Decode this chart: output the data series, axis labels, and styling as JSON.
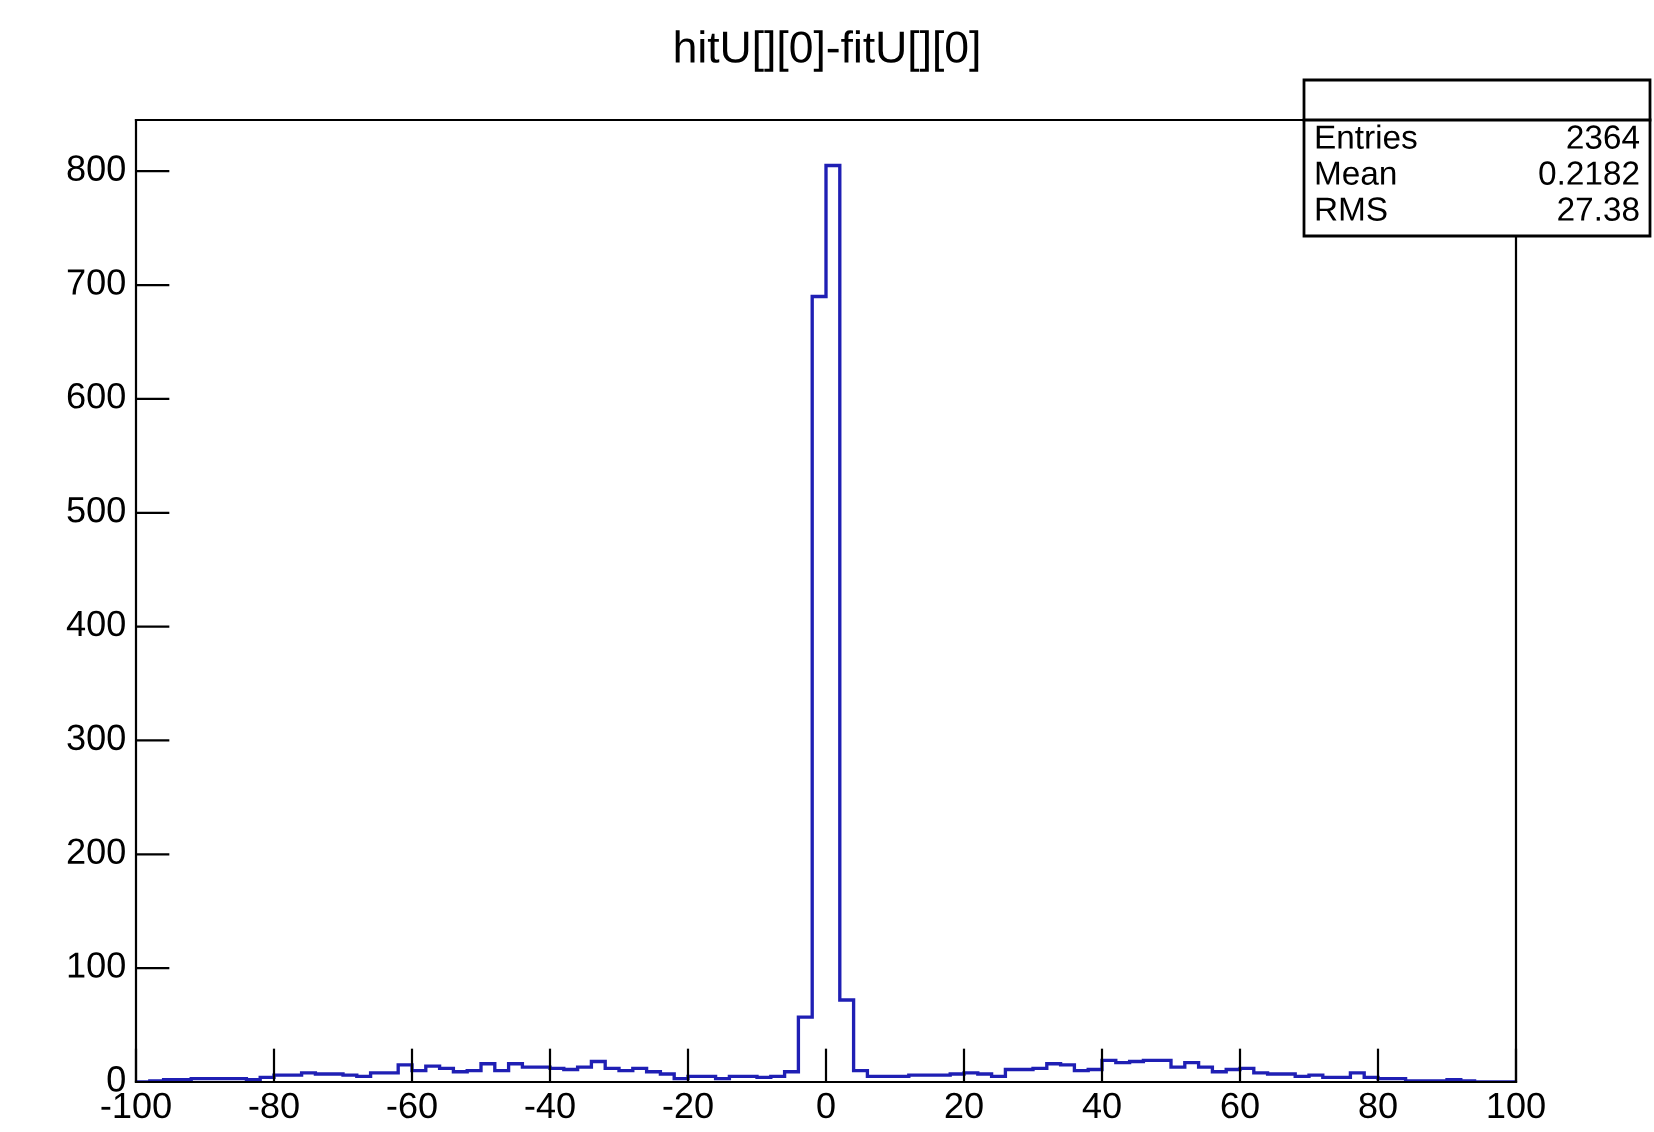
{
  "chart_data": {
    "type": "histogram",
    "title": "hitU[][0]-fitU[][0]",
    "bins": [
      -100,
      -98,
      -96,
      -94,
      -92,
      -90,
      -88,
      -86,
      -84,
      -82,
      -80,
      -78,
      -76,
      -74,
      -72,
      -70,
      -68,
      -66,
      -64,
      -62,
      -60,
      -58,
      -56,
      -54,
      -52,
      -50,
      -48,
      -46,
      -44,
      -42,
      -40,
      -38,
      -36,
      -34,
      -32,
      -30,
      -28,
      -26,
      -24,
      -22,
      -20,
      -18,
      -16,
      -14,
      -12,
      -10,
      -8,
      -6,
      -4,
      -2,
      0,
      2,
      4,
      6,
      8,
      10,
      12,
      14,
      16,
      18,
      20,
      22,
      24,
      26,
      28,
      30,
      32,
      34,
      36,
      38,
      40,
      42,
      44,
      46,
      48,
      50,
      52,
      54,
      56,
      58,
      60,
      62,
      64,
      66,
      68,
      70,
      72,
      74,
      76,
      78,
      80,
      82,
      84,
      86,
      88,
      90,
      92,
      94,
      96,
      98,
      100
    ],
    "values": [
      0,
      1,
      2,
      2,
      3,
      3,
      3,
      3,
      2,
      4,
      6,
      6,
      8,
      7,
      7,
      6,
      5,
      8,
      8,
      15,
      10,
      14,
      12,
      9,
      10,
      16,
      10,
      16,
      13,
      13,
      12,
      11,
      13,
      18,
      12,
      10,
      12,
      9,
      7,
      3,
      5,
      5,
      3,
      5,
      5,
      4,
      5,
      9,
      57,
      690,
      805,
      72,
      10,
      5,
      5,
      5,
      6,
      6,
      6,
      7,
      8,
      7,
      5,
      11,
      11,
      12,
      16,
      15,
      10,
      11,
      19,
      17,
      18,
      19,
      19,
      13,
      17,
      13,
      9,
      11,
      12,
      8,
      7,
      7,
      5,
      6,
      4,
      4,
      8,
      4,
      3,
      3,
      1,
      1,
      1,
      2,
      1,
      0,
      0,
      0
    ],
    "color": "#1f1fb4",
    "xlim": [
      -100,
      100
    ],
    "xticks": [
      -100,
      -80,
      -60,
      -40,
      -20,
      0,
      20,
      40,
      60,
      80,
      100
    ],
    "ylim": [
      0,
      845
    ],
    "yticks": [
      0,
      100,
      200,
      300,
      400,
      500,
      600,
      700,
      800
    ],
    "grid": false,
    "annotations": [
      "Entries\t2364",
      "Mean\t0.2182",
      "RMS\t27.38"
    ]
  }
}
